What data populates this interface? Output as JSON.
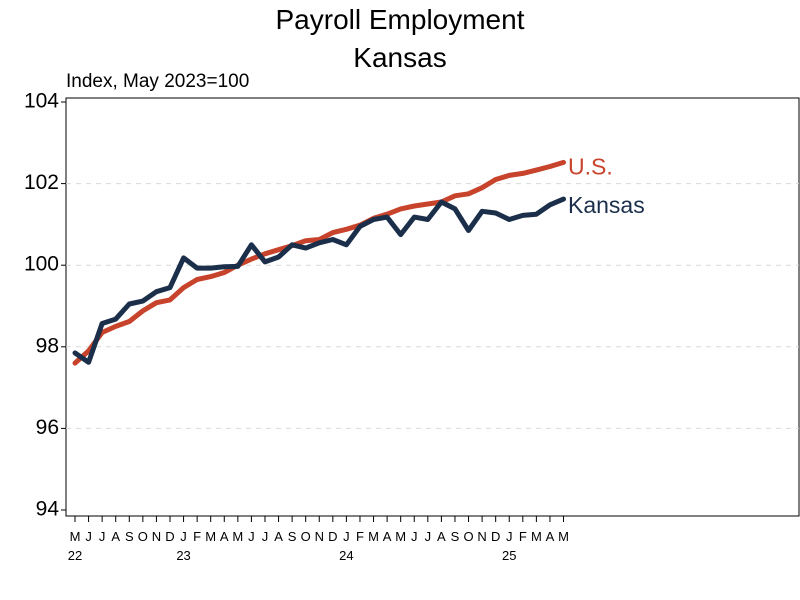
{
  "chart_data": {
    "type": "line",
    "title": "Payroll Employment",
    "subtitle": "Kansas",
    "ylabel": "Index, May 2023=100",
    "ylim": [
      94,
      104
    ],
    "yticks": [
      "94",
      "96",
      "98",
      "100",
      "102",
      "104"
    ],
    "grid": "horizontal dashed",
    "x": [
      "May 2022",
      "Jun 2022",
      "Jul 2022",
      "Aug 2022",
      "Sep 2022",
      "Oct 2022",
      "Nov 2022",
      "Dec 2022",
      "Jan 2023",
      "Feb 2023",
      "Mar 2023",
      "Apr 2023",
      "May 2023",
      "Jun 2023",
      "Jul 2023",
      "Aug 2023",
      "Sep 2023",
      "Oct 2023",
      "Nov 2023",
      "Dec 2023",
      "Jan 2024",
      "Feb 2024",
      "Mar 2024",
      "Apr 2024",
      "May 2024",
      "Jun 2024",
      "Jul 2024",
      "Aug 2024",
      "Sep 2024",
      "Oct 2024",
      "Nov 2024",
      "Dec 2024",
      "Jan 2025",
      "Feb 2025",
      "Mar 2025",
      "Apr 2025",
      "May 2025"
    ],
    "xtick_labels": [
      "M",
      "J",
      "J",
      "A",
      "S",
      "O",
      "N",
      "D",
      "J",
      "F",
      "M",
      "A",
      "M",
      "J",
      "J",
      "A",
      "S",
      "O",
      "N",
      "D",
      "J",
      "F",
      "M",
      "A",
      "M",
      "J",
      "J",
      "A",
      "S",
      "O",
      "N",
      "D",
      "J",
      "F",
      "M",
      "A",
      "M"
    ],
    "year_labels": [
      {
        "index": 0,
        "label": "22"
      },
      {
        "index": 8,
        "label": "23"
      },
      {
        "index": 20,
        "label": "24"
      },
      {
        "index": 32,
        "label": "25"
      }
    ],
    "series": [
      {
        "name": "U.S.",
        "color": "#c8432b",
        "values": [
          97.6,
          97.9,
          98.35,
          98.5,
          98.62,
          98.88,
          99.08,
          99.15,
          99.45,
          99.65,
          99.72,
          99.82,
          100.0,
          100.15,
          100.28,
          100.38,
          100.48,
          100.6,
          100.63,
          100.8,
          100.88,
          100.98,
          101.15,
          101.25,
          101.38,
          101.45,
          101.5,
          101.55,
          101.7,
          101.75,
          101.9,
          102.1,
          102.2,
          102.25,
          102.33,
          102.42,
          102.52
        ]
      },
      {
        "name": "Kansas",
        "color": "#1b2f4b",
        "values": [
          97.85,
          97.62,
          98.57,
          98.68,
          99.05,
          99.12,
          99.35,
          99.45,
          100.18,
          99.93,
          99.93,
          99.96,
          99.97,
          100.5,
          100.08,
          100.2,
          100.5,
          100.42,
          100.55,
          100.63,
          100.5,
          100.95,
          101.12,
          101.18,
          100.75,
          101.18,
          101.12,
          101.55,
          101.38,
          100.85,
          101.32,
          101.28,
          101.12,
          101.22,
          101.25,
          101.48,
          101.62
        ]
      }
    ]
  }
}
